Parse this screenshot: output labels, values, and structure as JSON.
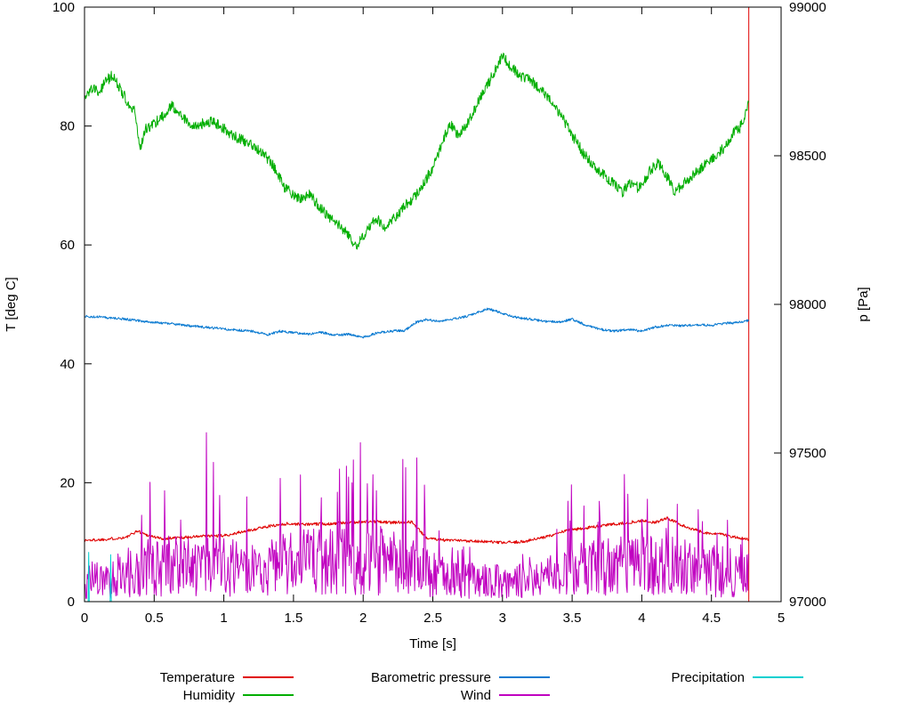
{
  "page": {
    "background": "#ffffff"
  },
  "chart_data": {
    "type": "line",
    "title": "",
    "xlabel": "Time [s]",
    "ylabel_left": "T [deg C]",
    "ylabel_right": "p [Pa]",
    "xlim": [
      0,
      5
    ],
    "ylim_left": [
      0,
      100
    ],
    "ylim_right": [
      97000,
      99000
    ],
    "x_ticks": [
      "0",
      "0.5",
      "1",
      "1.5",
      "2",
      "2.5",
      "3",
      "3.5",
      "4",
      "4.5",
      "5"
    ],
    "y_ticks_left": [
      "0",
      "20",
      "40",
      "60",
      "80",
      "100"
    ],
    "y_ticks_right": [
      "97000",
      "97500",
      "98000",
      "98500",
      "99000"
    ],
    "grid": false,
    "legend_position": "bottom",
    "legend_columns": [
      [
        0,
        1
      ],
      [
        2,
        3
      ],
      [
        4
      ]
    ],
    "seed": 1337,
    "series": [
      {
        "name": "Temperature",
        "color": "#e00000",
        "axis": "left",
        "gen": "noisy",
        "noise": 0.25,
        "step": 0.004,
        "end_spike": {
          "x": 4.768,
          "from": 0,
          "to": 100
        },
        "keypoints": [
          [
            0,
            10.3
          ],
          [
            0.1,
            10.4
          ],
          [
            0.2,
            10.6
          ],
          [
            0.3,
            10.8
          ],
          [
            0.38,
            11.9
          ],
          [
            0.45,
            11.2
          ],
          [
            0.55,
            10.6
          ],
          [
            0.7,
            10.8
          ],
          [
            0.85,
            11.0
          ],
          [
            1.0,
            11.1
          ],
          [
            1.15,
            11.8
          ],
          [
            1.3,
            12.6
          ],
          [
            1.45,
            13.1
          ],
          [
            1.6,
            13.0
          ],
          [
            1.75,
            13.1
          ],
          [
            1.9,
            13.3
          ],
          [
            2.05,
            13.5
          ],
          [
            2.2,
            13.3
          ],
          [
            2.35,
            13.4
          ],
          [
            2.45,
            10.8
          ],
          [
            2.6,
            10.3
          ],
          [
            2.8,
            10.2
          ],
          [
            3.0,
            9.9
          ],
          [
            3.15,
            10.1
          ],
          [
            3.3,
            10.8
          ],
          [
            3.45,
            11.9
          ],
          [
            3.6,
            12.4
          ],
          [
            3.75,
            12.9
          ],
          [
            3.9,
            13.3
          ],
          [
            4.0,
            13.6
          ],
          [
            4.1,
            13.3
          ],
          [
            4.18,
            14.1
          ],
          [
            4.3,
            12.7
          ],
          [
            4.45,
            11.6
          ],
          [
            4.6,
            11.2
          ],
          [
            4.7,
            10.7
          ],
          [
            4.768,
            10.4
          ]
        ]
      },
      {
        "name": "Humidity",
        "color": "#00ae00",
        "axis": "left",
        "gen": "noisy",
        "noise": 0.9,
        "step": 0.0035,
        "keypoints": [
          [
            0,
            84
          ],
          [
            0.05,
            86.5
          ],
          [
            0.1,
            85.5
          ],
          [
            0.15,
            87.5
          ],
          [
            0.2,
            88.5
          ],
          [
            0.25,
            86.5
          ],
          [
            0.3,
            84.5
          ],
          [
            0.36,
            82.5
          ],
          [
            0.4,
            76
          ],
          [
            0.44,
            79.5
          ],
          [
            0.5,
            80.5
          ],
          [
            0.56,
            81.5
          ],
          [
            0.62,
            83.5
          ],
          [
            0.68,
            82.5
          ],
          [
            0.74,
            80.5
          ],
          [
            0.8,
            80
          ],
          [
            0.86,
            80.5
          ],
          [
            0.92,
            81
          ],
          [
            1.0,
            79.5
          ],
          [
            1.1,
            78
          ],
          [
            1.2,
            77
          ],
          [
            1.3,
            75
          ],
          [
            1.38,
            72.5
          ],
          [
            1.44,
            69.5
          ],
          [
            1.5,
            68.5
          ],
          [
            1.56,
            67.5
          ],
          [
            1.62,
            68.5
          ],
          [
            1.68,
            66.5
          ],
          [
            1.76,
            64.5
          ],
          [
            1.84,
            63
          ],
          [
            1.9,
            61.5
          ],
          [
            1.95,
            59.8
          ],
          [
            2.0,
            61.5
          ],
          [
            2.06,
            63.8
          ],
          [
            2.1,
            64.3
          ],
          [
            2.16,
            63
          ],
          [
            2.22,
            64.5
          ],
          [
            2.3,
            66.5
          ],
          [
            2.4,
            69
          ],
          [
            2.5,
            73
          ],
          [
            2.56,
            76.5
          ],
          [
            2.62,
            80.5
          ],
          [
            2.68,
            78.5
          ],
          [
            2.72,
            79.5
          ],
          [
            2.78,
            82
          ],
          [
            2.86,
            85.5
          ],
          [
            2.94,
            89
          ],
          [
            3.0,
            91.8
          ],
          [
            3.06,
            90
          ],
          [
            3.12,
            88.5
          ],
          [
            3.2,
            87.8
          ],
          [
            3.3,
            85.5
          ],
          [
            3.4,
            82.5
          ],
          [
            3.5,
            78.5
          ],
          [
            3.58,
            75.5
          ],
          [
            3.66,
            73
          ],
          [
            3.74,
            71.5
          ],
          [
            3.82,
            70
          ],
          [
            3.86,
            68.8
          ],
          [
            3.92,
            70.5
          ],
          [
            3.98,
            69.5
          ],
          [
            4.06,
            72.5
          ],
          [
            4.12,
            73.8
          ],
          [
            4.18,
            71.5
          ],
          [
            4.24,
            68.8
          ],
          [
            4.3,
            70.5
          ],
          [
            4.4,
            72.5
          ],
          [
            4.5,
            74.5
          ],
          [
            4.6,
            76.5
          ],
          [
            4.66,
            79
          ],
          [
            4.7,
            79.5
          ],
          [
            4.74,
            81.5
          ],
          [
            4.768,
            84.5
          ]
        ]
      },
      {
        "name": "Barometric pressure",
        "color": "#0a7ad1",
        "axis": "right",
        "gen": "noisy",
        "noise": 4,
        "step": 0.0035,
        "keypoints": [
          [
            0,
            97960
          ],
          [
            0.15,
            97956
          ],
          [
            0.3,
            97950
          ],
          [
            0.45,
            97942
          ],
          [
            0.6,
            97936
          ],
          [
            0.75,
            97928
          ],
          [
            0.9,
            97922
          ],
          [
            1.05,
            97915
          ],
          [
            1.2,
            97910
          ],
          [
            1.32,
            97898
          ],
          [
            1.4,
            97910
          ],
          [
            1.5,
            97905
          ],
          [
            1.6,
            97900
          ],
          [
            1.7,
            97906
          ],
          [
            1.8,
            97896
          ],
          [
            1.9,
            97900
          ],
          [
            2.0,
            97889
          ],
          [
            2.1,
            97904
          ],
          [
            2.2,
            97910
          ],
          [
            2.3,
            97912
          ],
          [
            2.38,
            97940
          ],
          [
            2.45,
            97948
          ],
          [
            2.55,
            97944
          ],
          [
            2.65,
            97952
          ],
          [
            2.75,
            97960
          ],
          [
            2.85,
            97978
          ],
          [
            2.9,
            97985
          ],
          [
            3.0,
            97970
          ],
          [
            3.1,
            97956
          ],
          [
            3.2,
            97950
          ],
          [
            3.3,
            97944
          ],
          [
            3.4,
            97940
          ],
          [
            3.5,
            97950
          ],
          [
            3.6,
            97930
          ],
          [
            3.7,
            97916
          ],
          [
            3.8,
            97910
          ],
          [
            3.9,
            97916
          ],
          [
            4.0,
            97910
          ],
          [
            4.1,
            97924
          ],
          [
            4.2,
            97930
          ],
          [
            4.3,
            97928
          ],
          [
            4.4,
            97932
          ],
          [
            4.5,
            97930
          ],
          [
            4.6,
            97936
          ],
          [
            4.7,
            97940
          ],
          [
            4.768,
            97946
          ]
        ]
      },
      {
        "name": "Wind",
        "color": "#c000c0",
        "axis": "left",
        "gen": "spiky",
        "spike_prob": 0.07,
        "step": 0.005,
        "base": [
          [
            0,
            3.5
          ],
          [
            0.3,
            4
          ],
          [
            0.45,
            5
          ],
          [
            0.6,
            6
          ],
          [
            0.9,
            6.5
          ],
          [
            1.1,
            5.5
          ],
          [
            1.3,
            6
          ],
          [
            1.5,
            6.5
          ],
          [
            1.7,
            7
          ],
          [
            1.9,
            6.5
          ],
          [
            2.1,
            7
          ],
          [
            2.3,
            6
          ],
          [
            2.45,
            5
          ],
          [
            2.6,
            4
          ],
          [
            2.8,
            3.5
          ],
          [
            3.0,
            3.5
          ],
          [
            3.2,
            3.5
          ],
          [
            3.4,
            4.5
          ],
          [
            3.6,
            5.5
          ],
          [
            3.8,
            6
          ],
          [
            4.0,
            6
          ],
          [
            4.2,
            6
          ],
          [
            4.4,
            5.5
          ],
          [
            4.6,
            5
          ],
          [
            4.768,
            4.5
          ]
        ],
        "peak": [
          [
            0,
            7
          ],
          [
            0.3,
            9
          ],
          [
            0.45,
            20
          ],
          [
            0.55,
            25
          ],
          [
            0.7,
            30
          ],
          [
            0.9,
            34
          ],
          [
            1.0,
            26
          ],
          [
            1.15,
            20
          ],
          [
            1.3,
            21
          ],
          [
            1.5,
            23
          ],
          [
            1.7,
            26
          ],
          [
            1.85,
            25
          ],
          [
            2.0,
            31
          ],
          [
            2.1,
            29
          ],
          [
            2.25,
            29
          ],
          [
            2.35,
            24
          ],
          [
            2.42,
            28
          ],
          [
            2.5,
            13
          ],
          [
            2.65,
            10
          ],
          [
            2.85,
            9
          ],
          [
            3.05,
            10
          ],
          [
            3.25,
            9
          ],
          [
            3.42,
            14
          ],
          [
            3.5,
            25
          ],
          [
            3.6,
            17
          ],
          [
            3.75,
            20
          ],
          [
            3.9,
            22
          ],
          [
            4.05,
            19
          ],
          [
            4.2,
            17
          ],
          [
            4.35,
            16
          ],
          [
            4.5,
            18
          ],
          [
            4.6,
            14
          ],
          [
            4.7,
            12
          ],
          [
            4.768,
            10
          ]
        ]
      },
      {
        "name": "Precipitation",
        "color": "#00d0d0",
        "axis": "left",
        "gen": "poly",
        "keypoints": [
          [
            0,
            0
          ],
          [
            0.026,
            0
          ],
          [
            0.03,
            8.3
          ],
          [
            0.034,
            0
          ],
          [
            0.184,
            0
          ],
          [
            0.188,
            7.9
          ],
          [
            0.192,
            0
          ],
          [
            0.24,
            0
          ]
        ]
      }
    ]
  }
}
